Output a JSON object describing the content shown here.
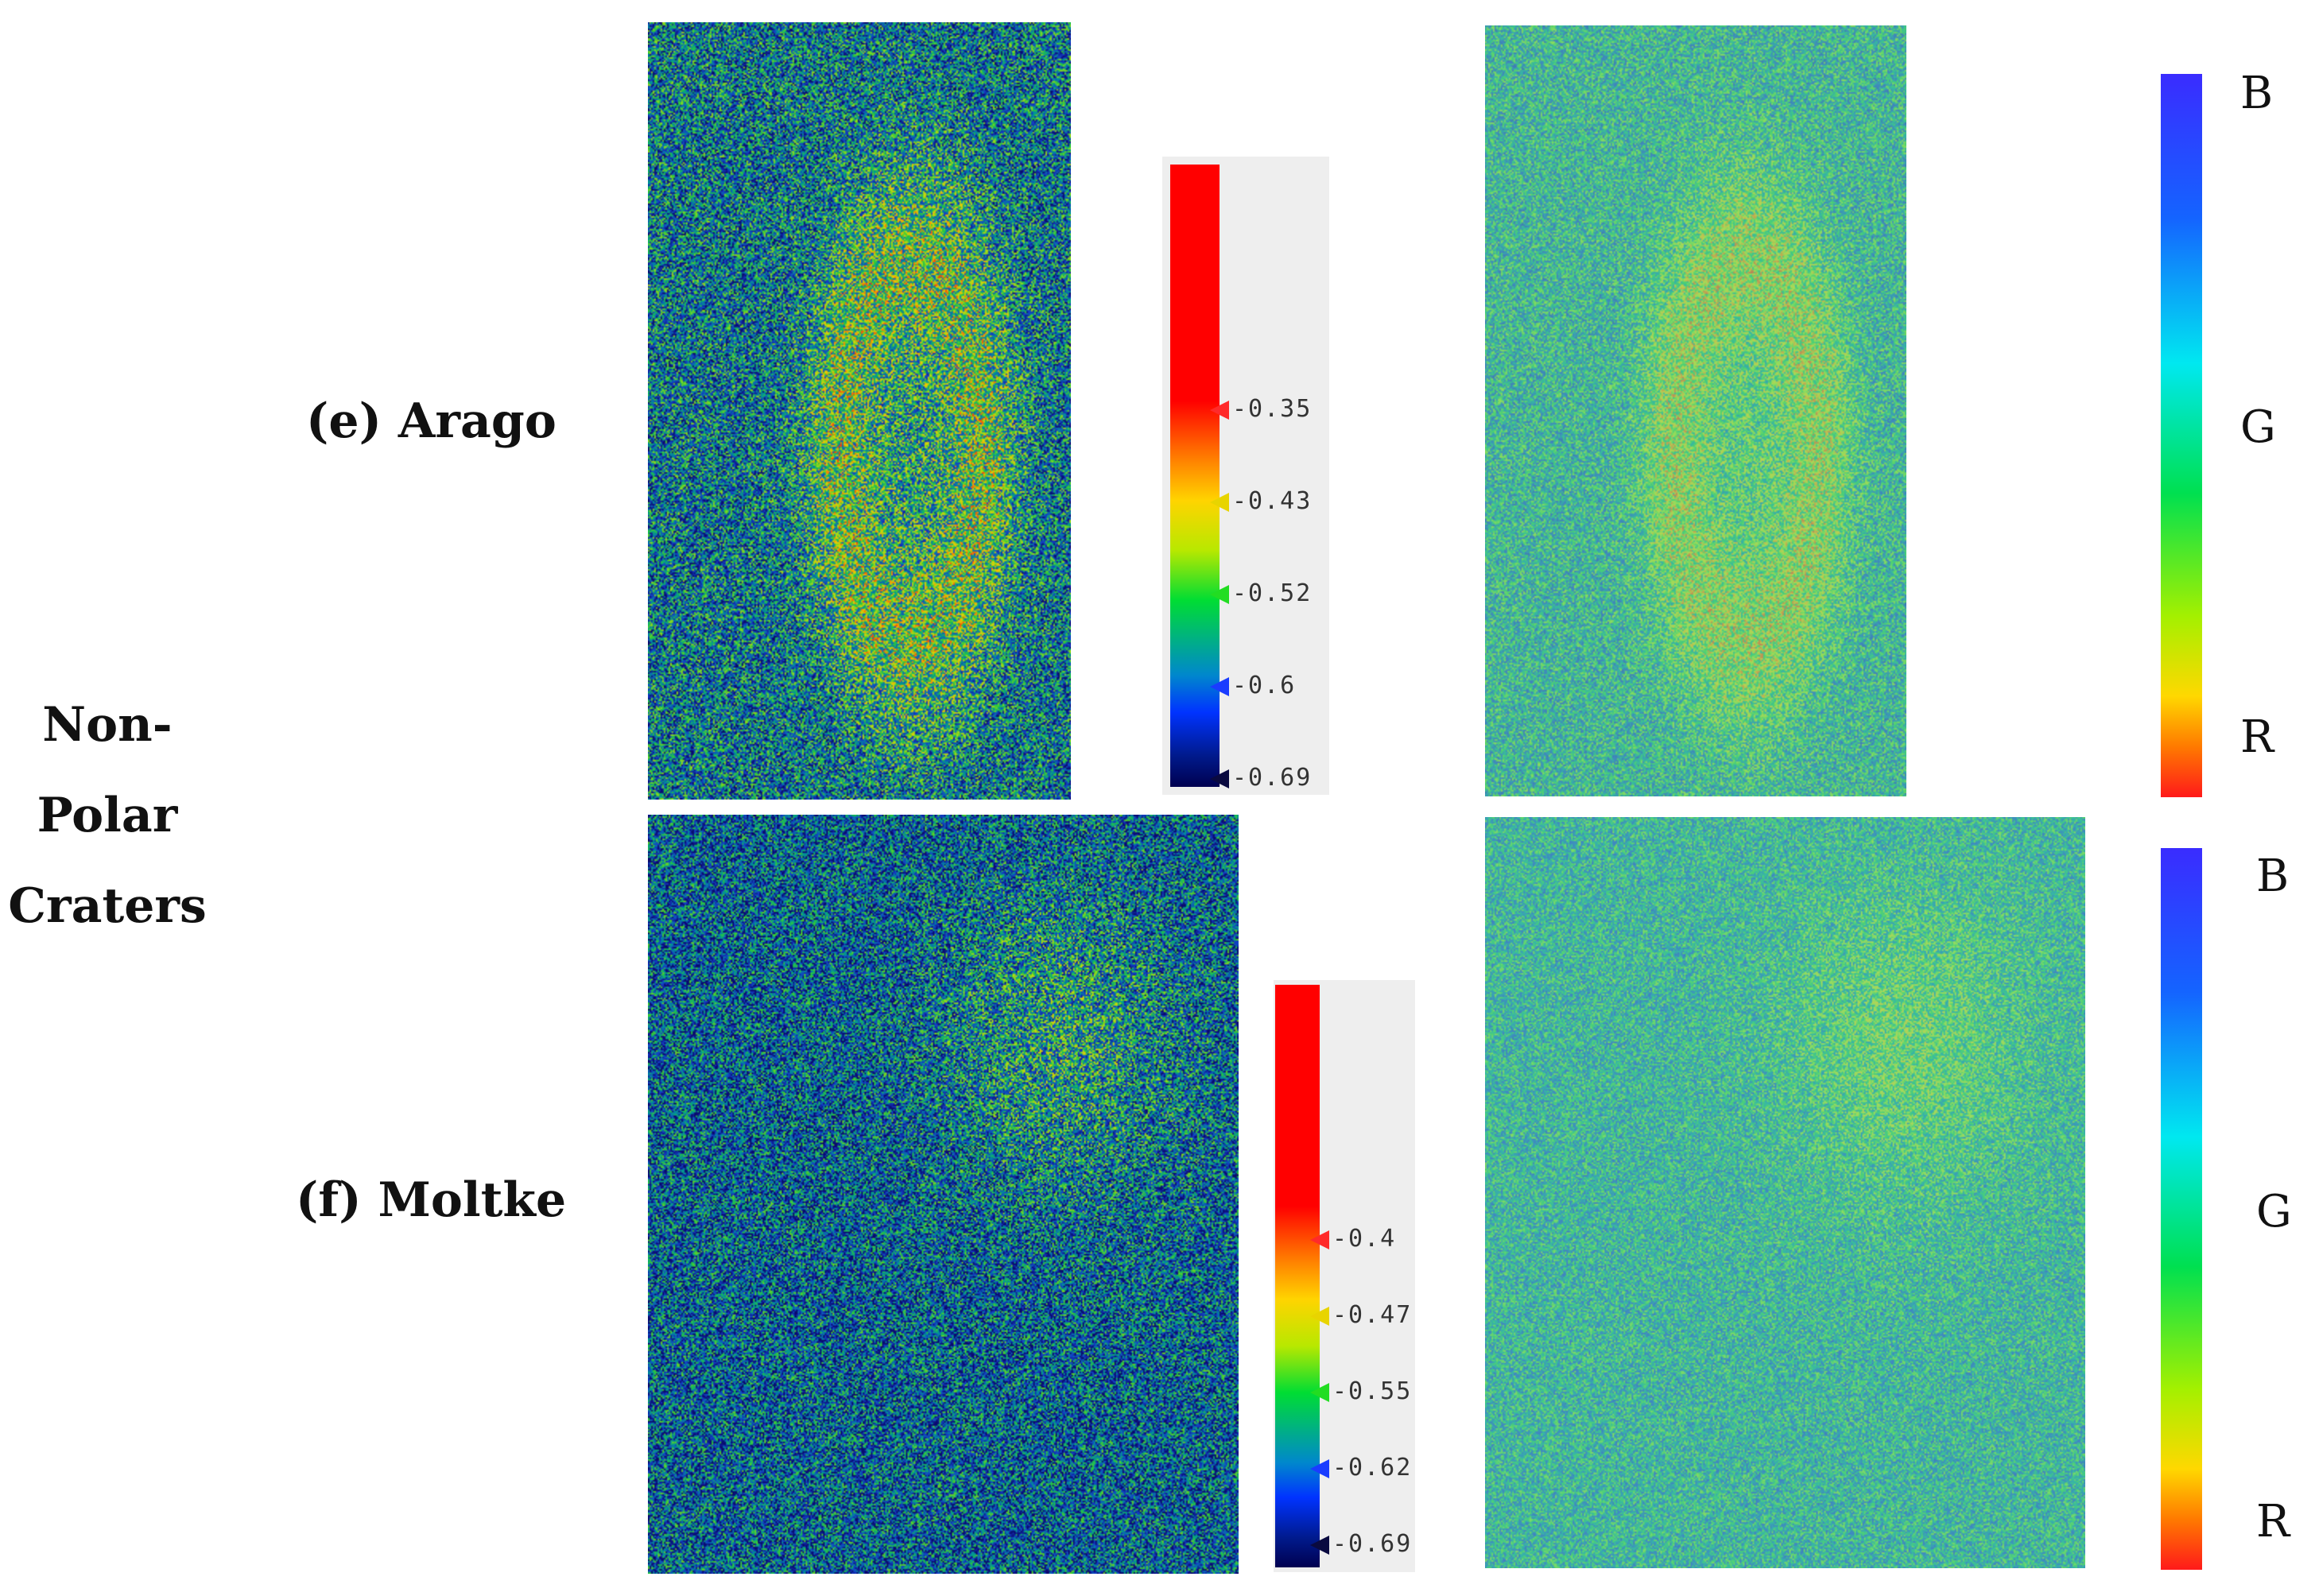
{
  "group_label": [
    "Non-",
    "Polar",
    "Craters"
  ],
  "rows": [
    {
      "crater_label": "(e) Arago",
      "colorbar_ticks": [
        "-0.35",
        "-0.43",
        "-0.52",
        "-0.6",
        "-0.69"
      ],
      "tick_colors": [
        "#ff2a2a",
        "#e8d400",
        "#22dd22",
        "#1a3cff",
        "#0a0a40"
      ],
      "rgb_legend": [
        "B",
        "G",
        "R"
      ]
    },
    {
      "crater_label": "(f) Moltke",
      "colorbar_ticks": [
        "-0.4",
        "-0.47",
        "-0.55",
        "-0.62",
        "-0.69"
      ],
      "tick_colors": [
        "#ff2a2a",
        "#e8d400",
        "#22dd22",
        "#1a3cff",
        "#0a0a40"
      ],
      "rgb_legend": [
        "B",
        "G",
        "R"
      ]
    }
  ]
}
